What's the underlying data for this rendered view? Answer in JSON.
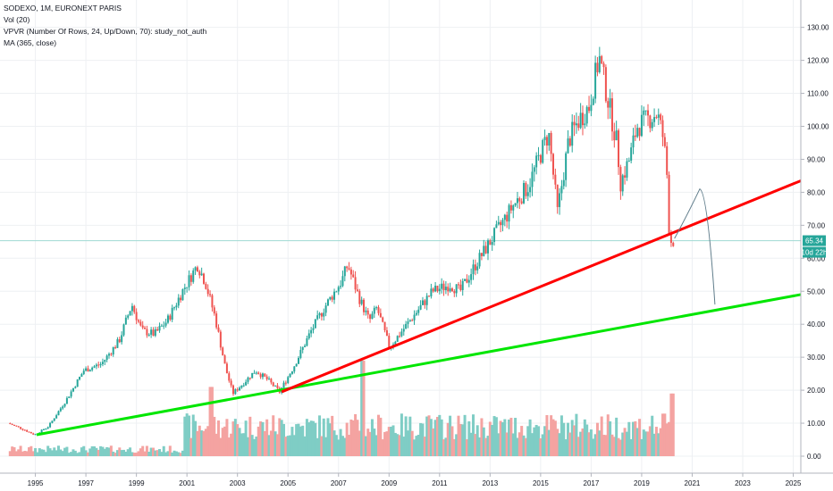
{
  "legend": {
    "title": "SODEXO, 1M, EURONEXT PARIS",
    "vol": "Vol (20)",
    "vpvr": "VPVR (Number Of Rows, 24, Up/Down, 70): study_not_auth",
    "ma": "MA (365, close)"
  },
  "colors": {
    "up": "#26a69a",
    "down": "#ef5350",
    "vol_up": "#7fcdc5",
    "vol_down": "#f4a3a1",
    "red_trendline": "#ff0000",
    "green_trendline": "#00e600",
    "forecast_curve": "#607d8b",
    "price_line": "#9fd9d3",
    "badge": "#26a69a"
  },
  "chart_data": {
    "type": "candlestick",
    "symbol": "SODEXO",
    "interval": "1M",
    "exchange": "EURONEXT PARIS",
    "x_ticks": [
      "1995",
      "1997",
      "1999",
      "2001",
      "2003",
      "2005",
      "2007",
      "2009",
      "2011",
      "2013",
      "2015",
      "2017",
      "2019",
      "2021",
      "2023",
      "2025"
    ],
    "y_ticks": [
      "130.00",
      "120.00",
      "110.00",
      "100.00",
      "90.00",
      "80.00",
      "70.00",
      "60.00",
      "50.00",
      "40.00",
      "30.00",
      "20.00",
      "10.00",
      "0.00"
    ],
    "ylim": [
      -3,
      135
    ],
    "xlim": [
      1993.6,
      2025.3
    ],
    "price_anchors": [
      [
        1994.0,
        10.0
      ],
      [
        1994.5,
        8.5
      ],
      [
        1995.05,
        6.5
      ],
      [
        1995.6,
        9.0
      ],
      [
        1996.3,
        17.0
      ],
      [
        1997.0,
        26.0
      ],
      [
        1997.7,
        28.0
      ],
      [
        1998.4,
        35.0
      ],
      [
        1998.9,
        46.0
      ],
      [
        1999.3,
        38.0
      ],
      [
        1999.8,
        37.0
      ],
      [
        2000.3,
        41.0
      ],
      [
        2000.9,
        50.0
      ],
      [
        2001.5,
        58.0
      ],
      [
        2001.8,
        53.0
      ],
      [
        2002.2,
        42.0
      ],
      [
        2002.6,
        27.0
      ],
      [
        2002.9,
        19.0
      ],
      [
        2003.3,
        22.0
      ],
      [
        2003.8,
        26.0
      ],
      [
        2004.3,
        23.0
      ],
      [
        2004.75,
        19.5
      ],
      [
        2005.3,
        27.0
      ],
      [
        2006.0,
        38.0
      ],
      [
        2006.6,
        46.0
      ],
      [
        2007.2,
        53.0
      ],
      [
        2007.45,
        58.0
      ],
      [
        2007.9,
        48.0
      ],
      [
        2008.3,
        41.0
      ],
      [
        2008.6,
        45.0
      ],
      [
        2009.1,
        33.0
      ],
      [
        2009.6,
        38.0
      ],
      [
        2010.2,
        44.0
      ],
      [
        2010.8,
        50.0
      ],
      [
        2011.5,
        52.0
      ],
      [
        2011.9,
        50.0
      ],
      [
        2012.5,
        58.0
      ],
      [
        2013.0,
        64.0
      ],
      [
        2013.5,
        70.0
      ],
      [
        2014.0,
        76.0
      ],
      [
        2014.6,
        82.0
      ],
      [
        2015.0,
        90.0
      ],
      [
        2015.4,
        98.0
      ],
      [
        2015.75,
        74.0
      ],
      [
        2016.2,
        96.0
      ],
      [
        2016.6,
        102.0
      ],
      [
        2017.0,
        106.0
      ],
      [
        2017.4,
        121.0
      ],
      [
        2017.75,
        108.0
      ],
      [
        2018.1,
        95.0
      ],
      [
        2018.25,
        83.0
      ],
      [
        2018.6,
        90.0
      ],
      [
        2018.9,
        100.0
      ],
      [
        2019.3,
        102.0
      ],
      [
        2019.7,
        104.0
      ],
      [
        2019.95,
        96.0
      ],
      [
        2020.1,
        84.0
      ],
      [
        2020.2,
        62.0
      ],
      [
        2020.25,
        65.34
      ]
    ],
    "volume_scale_max": 20,
    "last_price": "65.34",
    "countdown": "10d 22h",
    "red_trendline": [
      [
        2004.75,
        19.5
      ],
      [
        2025.3,
        83.5
      ]
    ],
    "green_trendline": [
      [
        1995.05,
        6.5
      ],
      [
        2025.3,
        49.0
      ]
    ],
    "forecast_curve": [
      [
        2020.3,
        66.0
      ],
      [
        2020.8,
        75.0
      ],
      [
        2021.3,
        81.0
      ],
      [
        2021.6,
        74.0
      ],
      [
        2021.9,
        46.0
      ]
    ]
  }
}
